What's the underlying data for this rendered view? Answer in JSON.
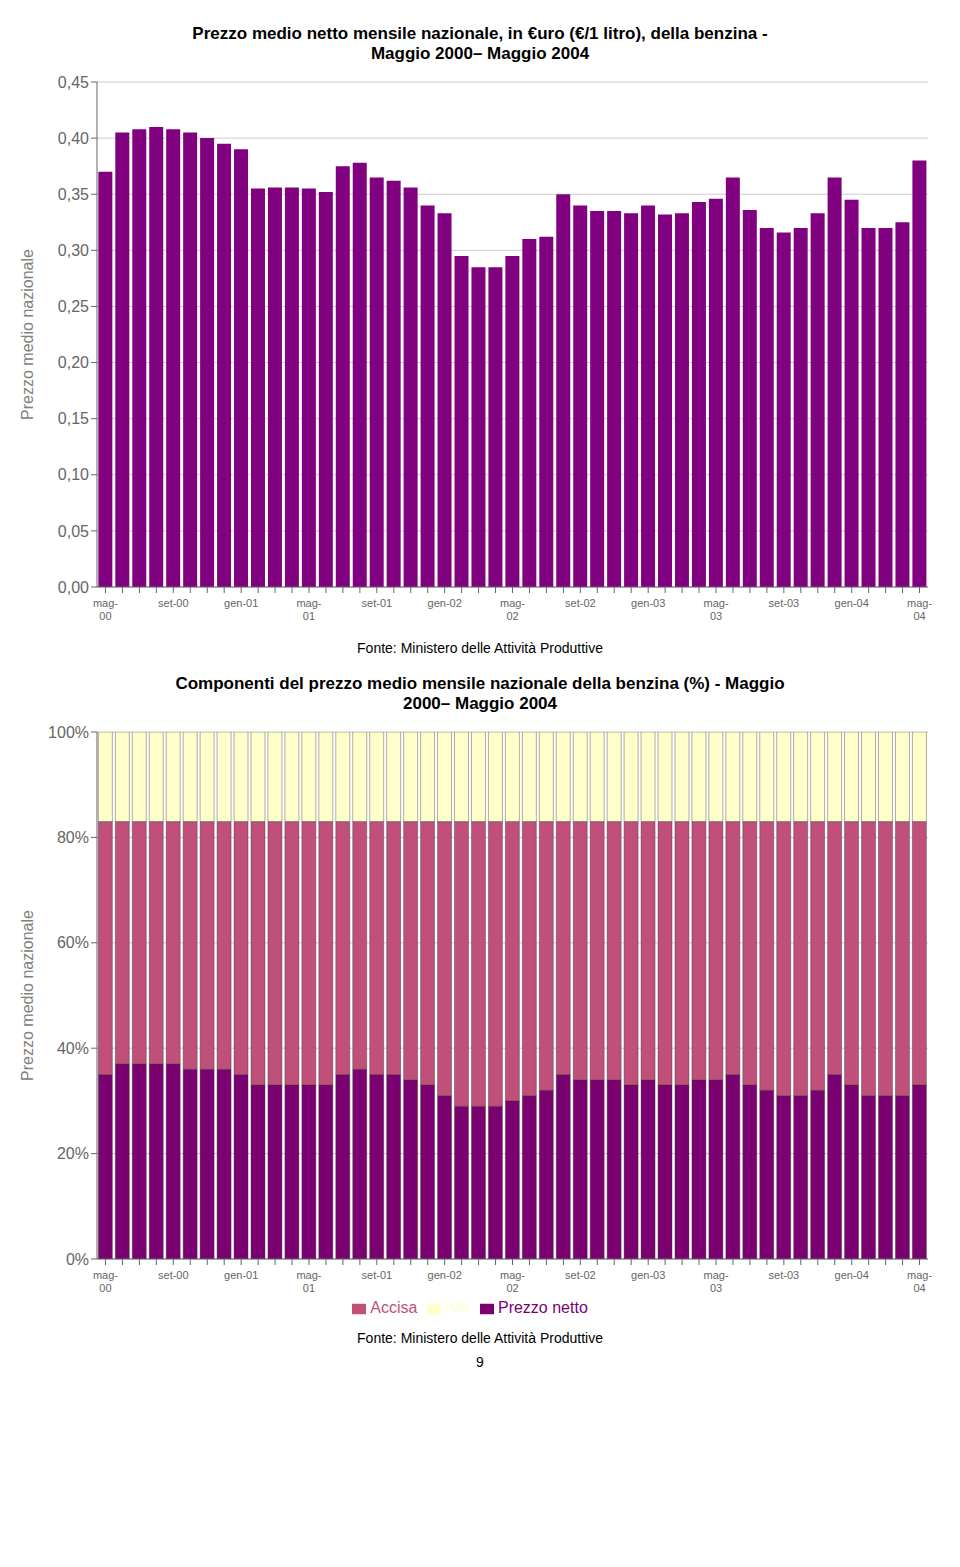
{
  "chart_data": [
    {
      "type": "bar",
      "title": "Prezzo medio netto mensile nazionale, in €uro (€/1 litro), della benzina -\nMaggio 2000– Maggio 2004",
      "y_label": "Prezzo medio nazionale",
      "categories": [
        "mag-\n00",
        null,
        null,
        null,
        "set-00",
        null,
        null,
        null,
        "gen-01",
        null,
        null,
        null,
        "mag-\n01",
        null,
        null,
        null,
        "set-01",
        null,
        null,
        null,
        "gen-02",
        null,
        null,
        null,
        "mag-\n02",
        null,
        null,
        null,
        "set-02",
        null,
        null,
        null,
        "gen-03",
        null,
        null,
        null,
        "mag-\n03",
        null,
        null,
        null,
        "set-03",
        null,
        null,
        null,
        "gen-04",
        null,
        null,
        null,
        "mag-\n04"
      ],
      "values": [
        0.37,
        0.405,
        0.408,
        0.41,
        0.408,
        0.405,
        0.4,
        0.395,
        0.39,
        0.355,
        0.356,
        0.356,
        0.355,
        0.352,
        0.375,
        0.378,
        0.365,
        0.362,
        0.356,
        0.34,
        0.333,
        0.295,
        0.285,
        0.285,
        0.295,
        0.31,
        0.312,
        0.35,
        0.34,
        0.335,
        0.335,
        0.333,
        0.34,
        0.332,
        0.333,
        0.343,
        0.346,
        0.365,
        0.336,
        0.32,
        0.316,
        0.32,
        0.333,
        0.365,
        0.345,
        0.32,
        0.32,
        0.325,
        0.38
      ],
      "color": "#800080",
      "ylim": [
        0,
        0.45
      ],
      "yticks": [
        {
          "value": 0,
          "label": "0,00"
        },
        {
          "value": 0.05,
          "label": "0,05"
        },
        {
          "value": 0.1,
          "label": "0,10"
        },
        {
          "value": 0.15,
          "label": "0,15"
        },
        {
          "value": 0.2,
          "label": "0,20"
        },
        {
          "value": 0.25,
          "label": "0,25"
        },
        {
          "value": 0.3,
          "label": "0,30"
        },
        {
          "value": 0.35,
          "label": "0,35"
        },
        {
          "value": 0.4,
          "label": "0,40"
        },
        {
          "value": 0.45,
          "label": "0,45"
        }
      ],
      "grid": true,
      "annotations": [
        "Fonte: Ministero delle Attività Produttive"
      ]
    },
    {
      "type": "bar",
      "title": "Componenti del prezzo medio mensile nazionale della benzina (%) - Maggio\n2000– Maggio 2004",
      "y_label": "Prezzo medio nazionale",
      "categories": [
        "mag-\n00",
        null,
        null,
        null,
        "set-00",
        null,
        null,
        null,
        "gen-01",
        null,
        null,
        null,
        "mag-\n01",
        null,
        null,
        null,
        "set-01",
        null,
        null,
        null,
        "gen-02",
        null,
        null,
        null,
        "mag-\n02",
        null,
        null,
        null,
        "set-02",
        null,
        null,
        null,
        "gen-03",
        null,
        null,
        null,
        "mag-\n03",
        null,
        null,
        null,
        "set-03",
        null,
        null,
        null,
        "gen-04",
        null,
        null,
        null,
        "mag-\n04"
      ],
      "series": [
        {
          "name": "Prezzo netto",
          "color": "#7b0070",
          "values": [
            35,
            37,
            37,
            37,
            37,
            36,
            36,
            36,
            35,
            33,
            33,
            33,
            33,
            33,
            35,
            36,
            35,
            35,
            34,
            33,
            31,
            29,
            29,
            29,
            30,
            31,
            32,
            35,
            34,
            34,
            34,
            33,
            34,
            33,
            33,
            34,
            34,
            35,
            33,
            32,
            31,
            31,
            32,
            35,
            33,
            31,
            31,
            31,
            33
          ]
        },
        {
          "name": "Accisa",
          "color": "#c0507a",
          "values": [
            48,
            46,
            46,
            46,
            46,
            47,
            47,
            47,
            48,
            50,
            50,
            50,
            50,
            50,
            48,
            47,
            48,
            48,
            49,
            50,
            52,
            54,
            54,
            54,
            53,
            52,
            51,
            48,
            49,
            49,
            49,
            50,
            49,
            50,
            50,
            49,
            49,
            48,
            50,
            51,
            52,
            52,
            51,
            48,
            50,
            52,
            52,
            52,
            50
          ]
        },
        {
          "name": "IVA",
          "color": "#ffffcc",
          "values": [
            17,
            17,
            17,
            17,
            17,
            17,
            17,
            17,
            17,
            17,
            17,
            17,
            17,
            17,
            17,
            17,
            17,
            17,
            17,
            17,
            17,
            17,
            17,
            17,
            17,
            17,
            17,
            17,
            17,
            17,
            17,
            17,
            17,
            17,
            17,
            17,
            17,
            17,
            17,
            17,
            17,
            17,
            17,
            17,
            17,
            17,
            17,
            17,
            17
          ]
        }
      ],
      "stacked": true,
      "ylim": [
        0,
        100
      ],
      "yticks": [
        {
          "value": 0,
          "label": "0%"
        },
        {
          "value": 20,
          "label": "20%"
        },
        {
          "value": 40,
          "label": "40%"
        },
        {
          "value": 60,
          "label": "60%"
        },
        {
          "value": 80,
          "label": "80%"
        },
        {
          "value": 100,
          "label": "100%"
        }
      ],
      "grid": true,
      "legend": "bottom",
      "annotations": [
        "Fonte: Ministero delle Attività Produttive",
        "9"
      ]
    }
  ]
}
